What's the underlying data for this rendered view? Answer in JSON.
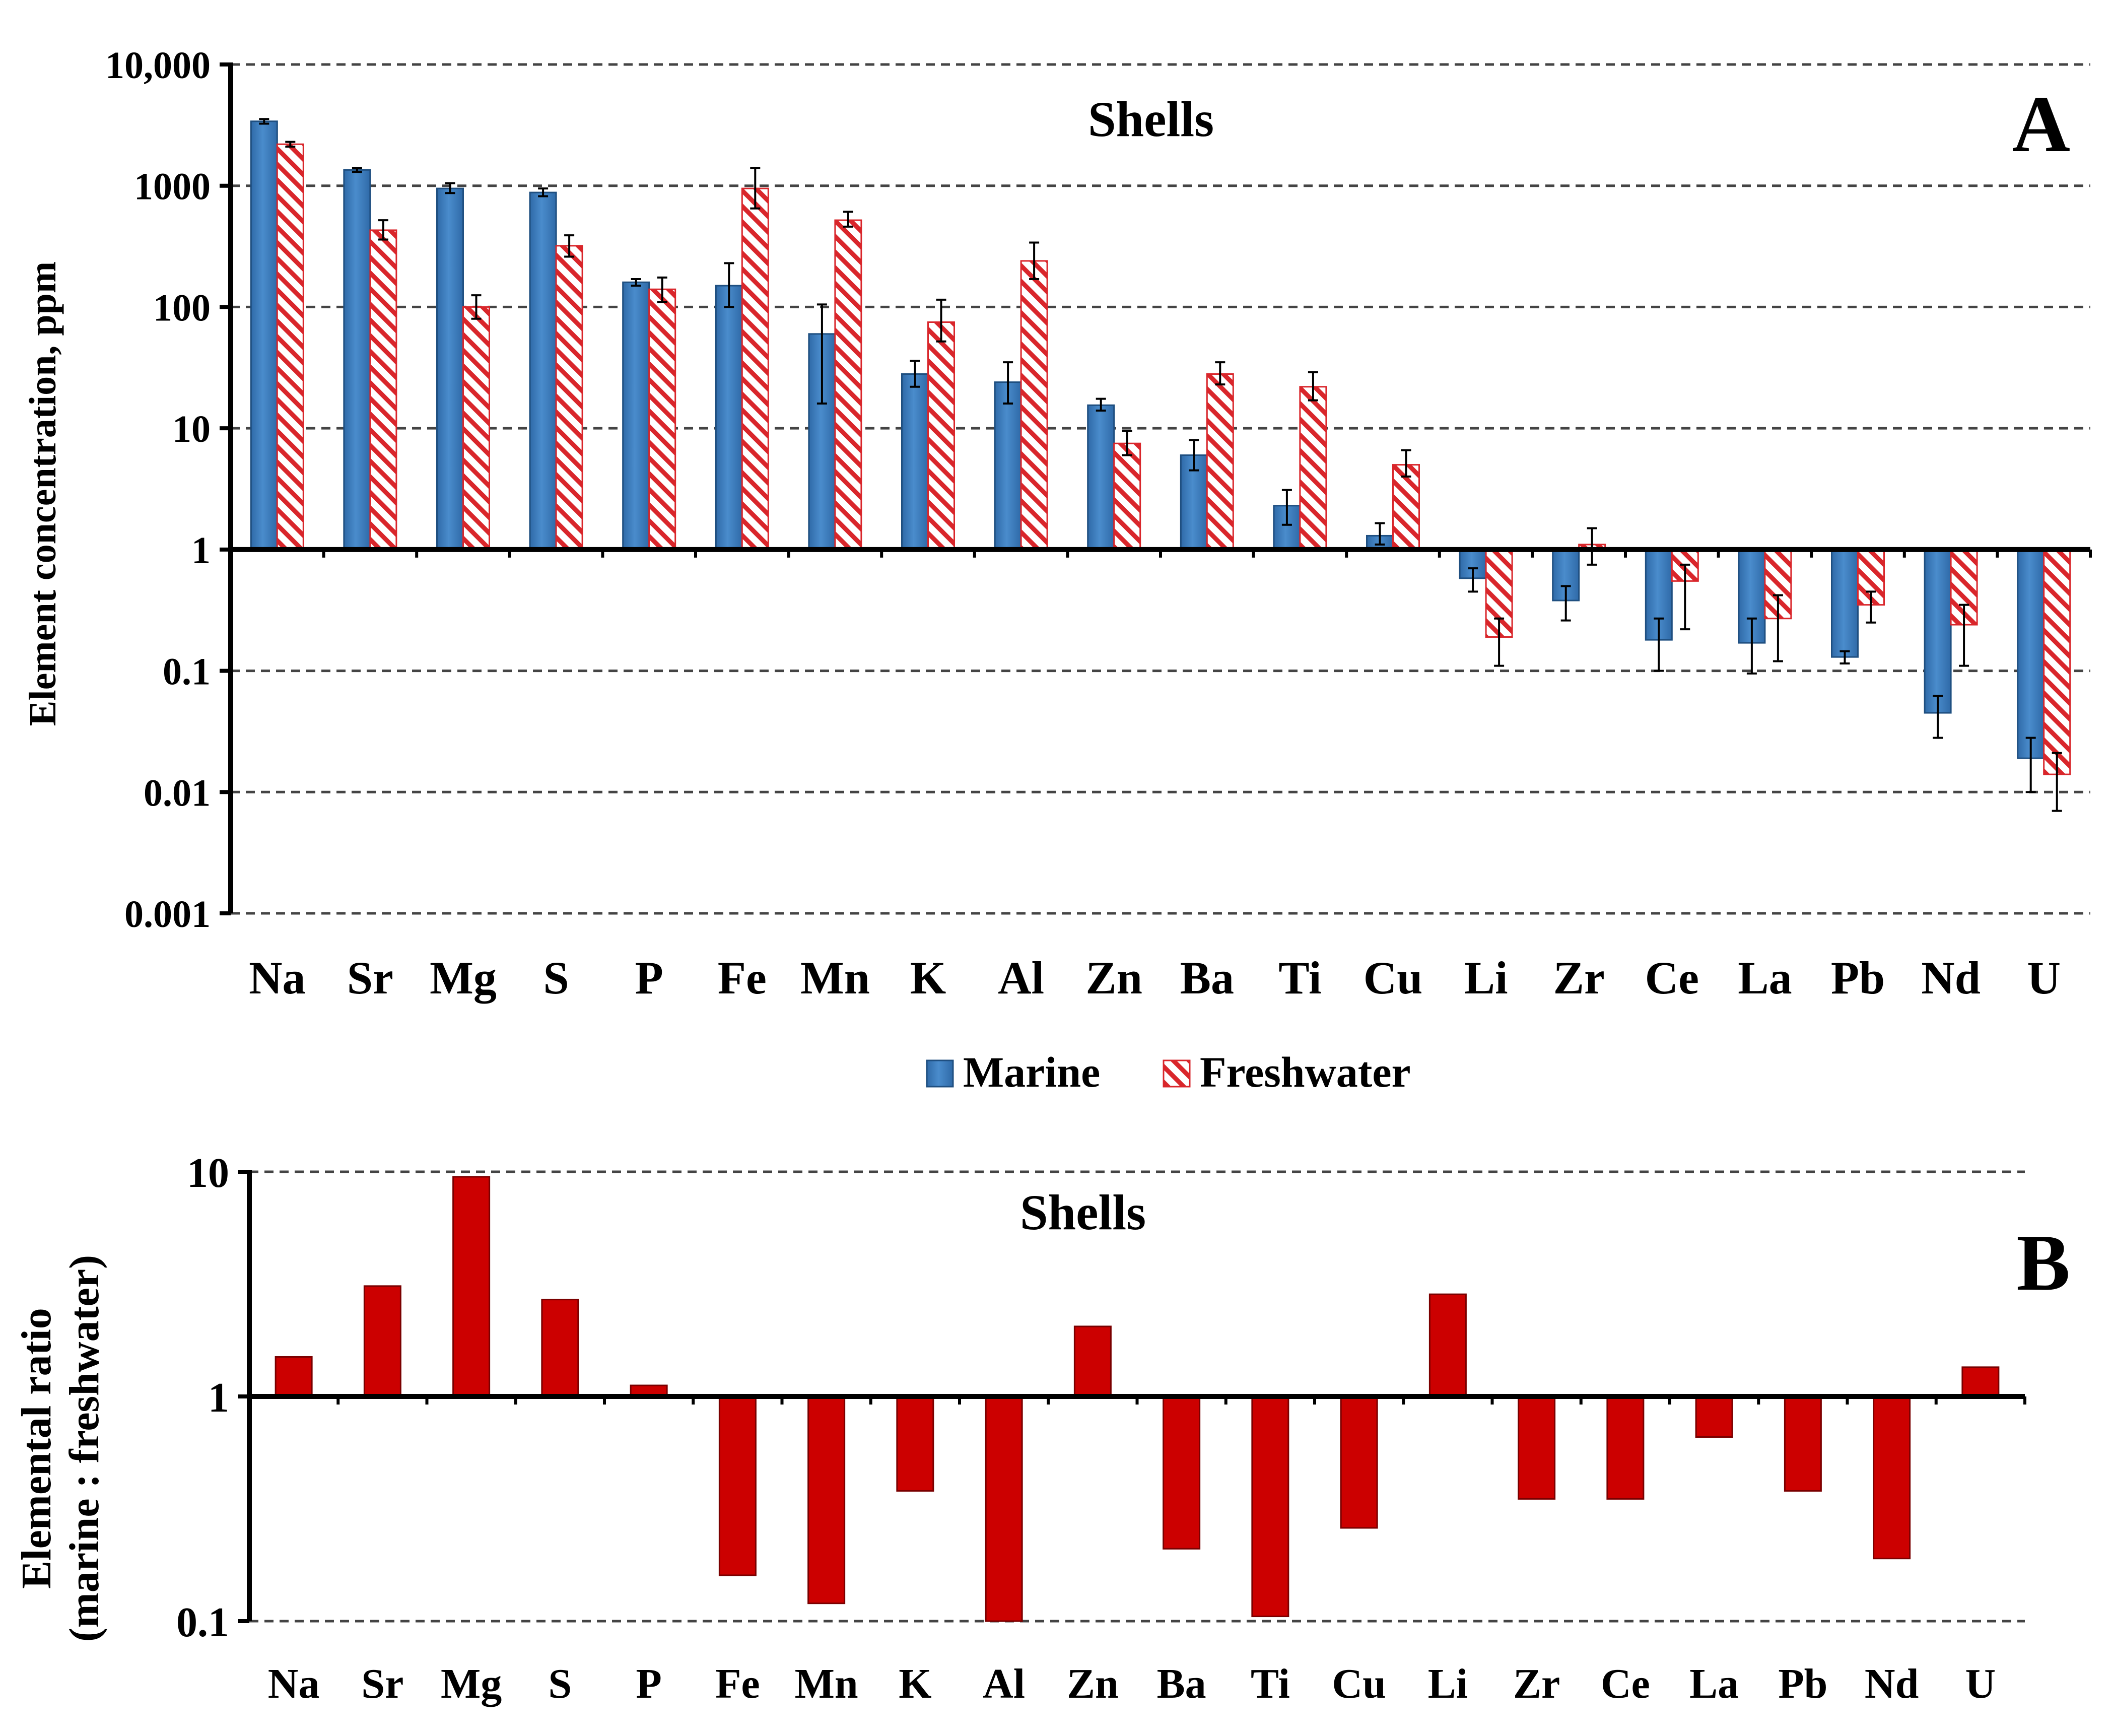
{
  "chart_data": [
    {
      "panel": "A",
      "type": "bar",
      "title": "Shells",
      "panel_label": "A",
      "ylabel": "Element concentration, ppm",
      "xlabel": "",
      "yscale": "log",
      "ylim": [
        0.001,
        10000
      ],
      "grid": true,
      "legend_position": "bottom-center",
      "ytick_labels": [
        "10,000",
        "1000",
        "100",
        "10",
        "1",
        "0.1",
        "0.01",
        "0.001"
      ],
      "categories": [
        "Na",
        "Sr",
        "Mg",
        "S",
        "P",
        "Fe",
        "Mn",
        "K",
        "Al",
        "Zn",
        "Ba",
        "Ti",
        "Cu",
        "Li",
        "Zr",
        "Ce",
        "La",
        "Pb",
        "Nd",
        "U"
      ],
      "series": [
        {
          "name": "Marine",
          "color": "#3d7ebf",
          "values": [
            3400,
            1350,
            950,
            880,
            160,
            150,
            60,
            28,
            24,
            15.5,
            6,
            2.3,
            1.3,
            0.58,
            0.38,
            0.18,
            0.17,
            0.13,
            0.045,
            0.019
          ],
          "error_low": [
            3250,
            1300,
            870,
            820,
            150,
            100,
            16,
            22,
            16,
            14,
            4.5,
            1.6,
            1.1,
            0.45,
            0.26,
            0.1,
            0.095,
            0.115,
            0.028,
            0.01
          ],
          "error_high": [
            3550,
            1400,
            1050,
            950,
            170,
            230,
            105,
            36,
            35,
            17.5,
            8,
            3.1,
            1.65,
            0.7,
            0.5,
            0.27,
            0.27,
            0.145,
            0.062,
            0.028
          ]
        },
        {
          "name": "Freshwater",
          "color": "#d9262b",
          "pattern": "hatched",
          "values": [
            2200,
            430,
            100,
            320,
            140,
            950,
            520,
            75,
            240,
            7.5,
            28,
            22,
            5,
            0.19,
            1.1,
            0.55,
            0.27,
            0.35,
            0.24,
            0.014
          ],
          "error_low": [
            2100,
            360,
            80,
            260,
            110,
            650,
            460,
            52,
            170,
            6,
            23,
            17,
            4,
            0.11,
            0.75,
            0.22,
            0.12,
            0.25,
            0.11,
            0.007
          ],
          "error_high": [
            2300,
            520,
            125,
            390,
            175,
            1400,
            610,
            115,
            340,
            9.5,
            35,
            29,
            6.6,
            0.27,
            1.5,
            0.75,
            0.42,
            0.45,
            0.35,
            0.021
          ]
        }
      ]
    },
    {
      "panel": "B",
      "type": "bar",
      "title": "Shells",
      "panel_label": "B",
      "ylabel_lines": [
        "Elemental ratio",
        "(marine : freshwater)"
      ],
      "xlabel": "",
      "yscale": "log",
      "ylim": [
        0.1,
        10
      ],
      "grid": true,
      "ytick_labels": [
        "10",
        "1",
        "0.1"
      ],
      "categories": [
        "Na",
        "Sr",
        "Mg",
        "S",
        "P",
        "Fe",
        "Mn",
        "K",
        "Al",
        "Zn",
        "Ba",
        "Ti",
        "Cu",
        "Li",
        "Zr",
        "Ce",
        "La",
        "Pb",
        "Nd",
        "U"
      ],
      "series": [
        {
          "name": "marine : freshwater",
          "color": "#cc0000",
          "values": [
            1.5,
            3.1,
            9.5,
            2.7,
            1.12,
            0.16,
            0.12,
            0.38,
            0.1,
            2.05,
            0.21,
            0.105,
            0.26,
            2.85,
            0.35,
            0.35,
            0.66,
            0.38,
            0.19,
            1.35
          ]
        }
      ]
    }
  ]
}
